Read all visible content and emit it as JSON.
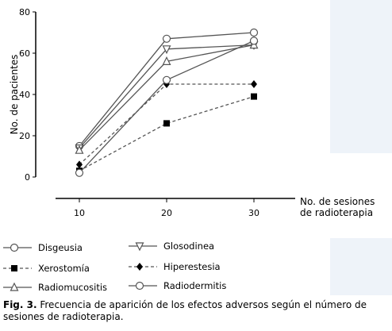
{
  "chart_data": {
    "type": "line",
    "x": [
      10,
      20,
      30
    ],
    "ylabel": "No. de pacientes",
    "xlabel_line1": "No. de sesiones",
    "xlabel_line2": "de radioterapia",
    "xlim": [
      5,
      35
    ],
    "ylim": [
      0,
      80
    ],
    "xticks": [
      "10",
      "20",
      "30"
    ],
    "yticks": [
      "0",
      "20",
      "40",
      "60",
      "80"
    ],
    "grid": false,
    "legend_position": "bottom",
    "series": [
      {
        "name": "Disgeusia",
        "values": [
          15,
          67,
          70
        ],
        "marker": "circle",
        "dashed": false,
        "color": "#555555"
      },
      {
        "name": "Glosodinea",
        "values": [
          14,
          62,
          64
        ],
        "marker": "triangle-down",
        "dashed": false,
        "color": "#555555"
      },
      {
        "name": "Xerostomía",
        "values": [
          3,
          26,
          39
        ],
        "marker": "square",
        "dashed": true,
        "color": "#555555"
      },
      {
        "name": "Hiperestesia",
        "values": [
          6,
          45,
          45
        ],
        "marker": "diamond",
        "dashed": true,
        "color": "#555555"
      },
      {
        "name": "Radiomucositis",
        "values": [
          13,
          56,
          64
        ],
        "marker": "triangle-up",
        "dashed": false,
        "color": "#555555"
      },
      {
        "name": "Radiodermitis",
        "values": [
          2,
          47,
          66
        ],
        "marker": "circle",
        "dashed": false,
        "color": "#555555"
      }
    ]
  },
  "caption": {
    "label": "Fig. 3.",
    "text": " Frecuencia de aparición de los efectos adversos según el número de sesiones de radioterapia."
  }
}
